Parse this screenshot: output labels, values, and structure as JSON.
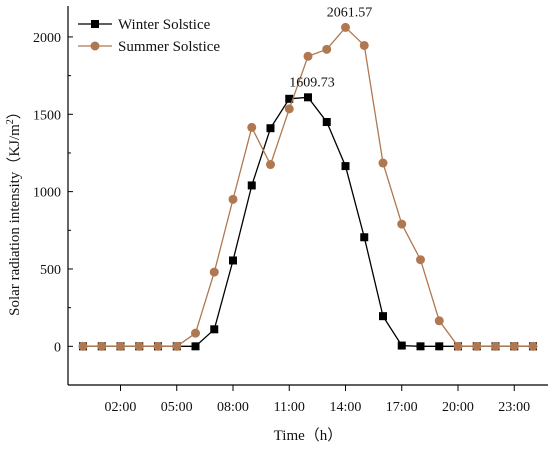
{
  "chart_data": {
    "type": "line",
    "xlabel": "Time（h）",
    "ylabel": "Solar radiation intensity（KJ/m",
    "ylabel_sup": "2",
    "ylabel_end": "）",
    "ylim": [
      -250,
      2200
    ],
    "y_ticks": [
      0,
      500,
      1000,
      1500,
      2000
    ],
    "xlim": [
      -0.8,
      24.8
    ],
    "x_ticks": [
      2,
      5,
      8,
      11,
      14,
      17,
      20,
      23
    ],
    "x_tick_labels": [
      "02:00",
      "05:00",
      "08:00",
      "11:00",
      "14:00",
      "17:00",
      "20:00",
      "23:00"
    ],
    "grid": false,
    "legend_position": "top-left",
    "x": [
      0,
      1,
      2,
      3,
      4,
      5,
      6,
      7,
      8,
      9,
      10,
      11,
      12,
      13,
      14,
      15,
      16,
      17,
      18,
      19,
      20,
      21,
      22,
      23,
      24
    ],
    "series": [
      {
        "name": "Winter Solstice",
        "color": "#000000",
        "marker": "square",
        "values": [
          0,
          0,
          0,
          0,
          0,
          0,
          0,
          110,
          555,
          1040,
          1410,
          1600,
          1609.73,
          1450,
          1165,
          705,
          195,
          5,
          0,
          0,
          0,
          0,
          0,
          0,
          0
        ]
      },
      {
        "name": "Summer Solstice",
        "color": "#b07850",
        "marker": "circle",
        "values": [
          0,
          0,
          0,
          0,
          0,
          0,
          85,
          480,
          950,
          1415,
          1175,
          1535,
          1875,
          1920,
          2061.57,
          1945,
          1185,
          790,
          560,
          165,
          0,
          0,
          0,
          0,
          0
        ]
      }
    ],
    "annotations": [
      {
        "text": "1609.73",
        "x": 12,
        "y": 1609.73
      },
      {
        "text": "2061.57",
        "x": 14,
        "y": 2061.57
      }
    ]
  }
}
